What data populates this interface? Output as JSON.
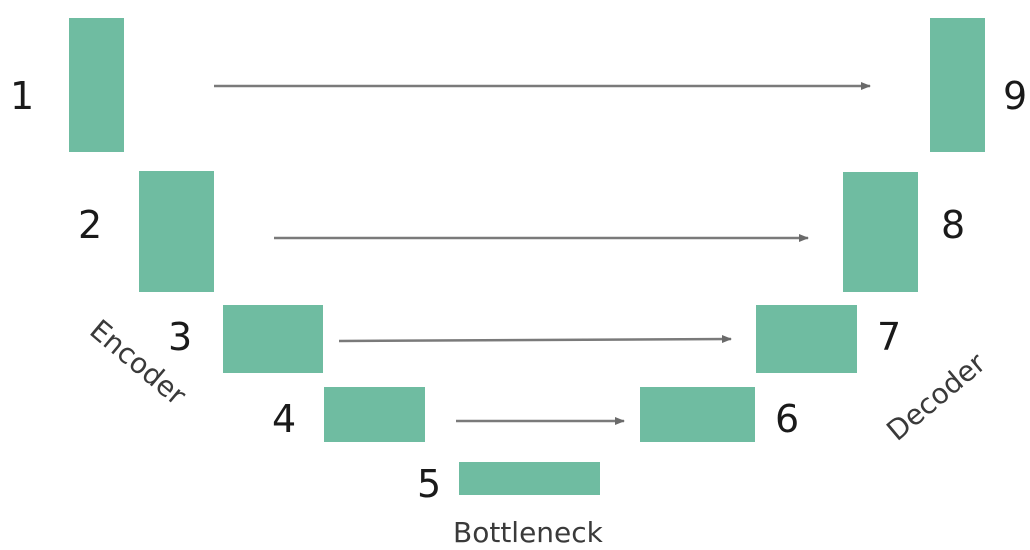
{
  "blocks": [
    {
      "id": 1,
      "label": "1"
    },
    {
      "id": 2,
      "label": "2"
    },
    {
      "id": 3,
      "label": "3"
    },
    {
      "id": 4,
      "label": "4"
    },
    {
      "id": 5,
      "label": "5"
    },
    {
      "id": 6,
      "label": "6"
    },
    {
      "id": 7,
      "label": "7"
    },
    {
      "id": 8,
      "label": "8"
    },
    {
      "id": 9,
      "label": "9"
    }
  ],
  "skip_connections": [
    {
      "from": 1,
      "to": 9
    },
    {
      "from": 2,
      "to": 8
    },
    {
      "from": 3,
      "to": 7
    },
    {
      "from": 4,
      "to": 6
    }
  ],
  "labels": {
    "encoder": "Encoder",
    "decoder": "Decoder",
    "bottleneck": "Bottleneck"
  },
  "colors": {
    "block": "#6fbca1",
    "arrow": "#7a7a7a"
  }
}
